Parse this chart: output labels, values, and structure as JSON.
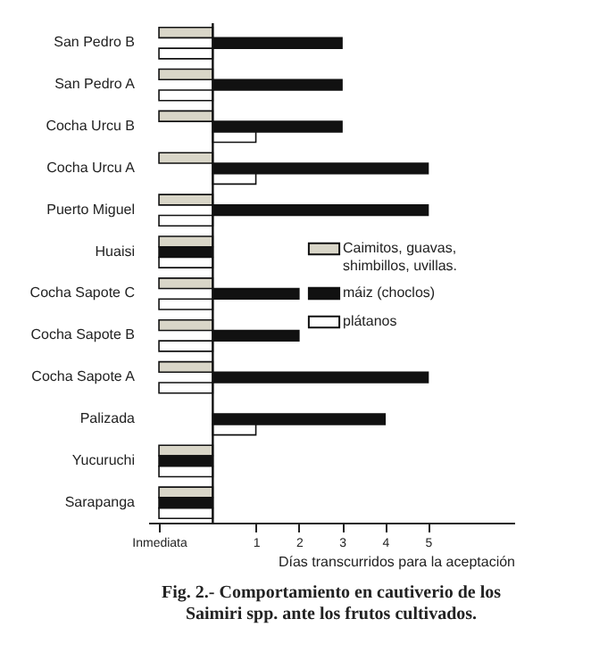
{
  "chart_data": {
    "type": "bar",
    "orientation": "horizontal",
    "title": "Fig. 2.- Comportamiento en cautiverio de los Saimiri spp. ante los frutos cultivados.",
    "xlabel": "Días transcurridos para la aceptación",
    "categories": [
      "San Pedro  B",
      "San Pedro  A",
      "Cocha Urcu B",
      "Cocha Urcu  A",
      "Puerto Miguel",
      "Huaisi",
      "Cocha Sapote C",
      "Cocha  Sapote B",
      "Cocha Sapote  A",
      "Palizada",
      "Yucuruchi",
      "Sarapanga"
    ],
    "series": [
      {
        "name": "Caimitos, guavas, shimbillos, uvillas.",
        "color": "#d9d6c8",
        "values": [
          -1.25,
          -1.25,
          -1.25,
          -1.25,
          -1.25,
          -1.25,
          -1.25,
          -1.25,
          -1.25,
          null,
          -1.25,
          -1.25
        ]
      },
      {
        "name": "máiz (choclos)",
        "color": "#111111",
        "values": [
          3,
          3,
          3,
          5,
          5,
          -1.25,
          2,
          2,
          5,
          4,
          -1.25,
          -1.25
        ]
      },
      {
        "name": "plátanos",
        "color": "#ffffff",
        "values": [
          -1.25,
          -1.25,
          1,
          1,
          -1.25,
          -1.25,
          -1.25,
          -1.25,
          -1.25,
          1,
          -1.25,
          -1.25
        ]
      }
    ],
    "xlim": [
      -1.5,
      7
    ],
    "xticks": [
      {
        "value": -1.25,
        "label": "Inmediata"
      },
      1,
      2,
      3,
      4,
      5
    ],
    "ref_lines": [
      {
        "axis": "x",
        "value": 0
      }
    ],
    "grid": false,
    "legend": "right"
  }
}
